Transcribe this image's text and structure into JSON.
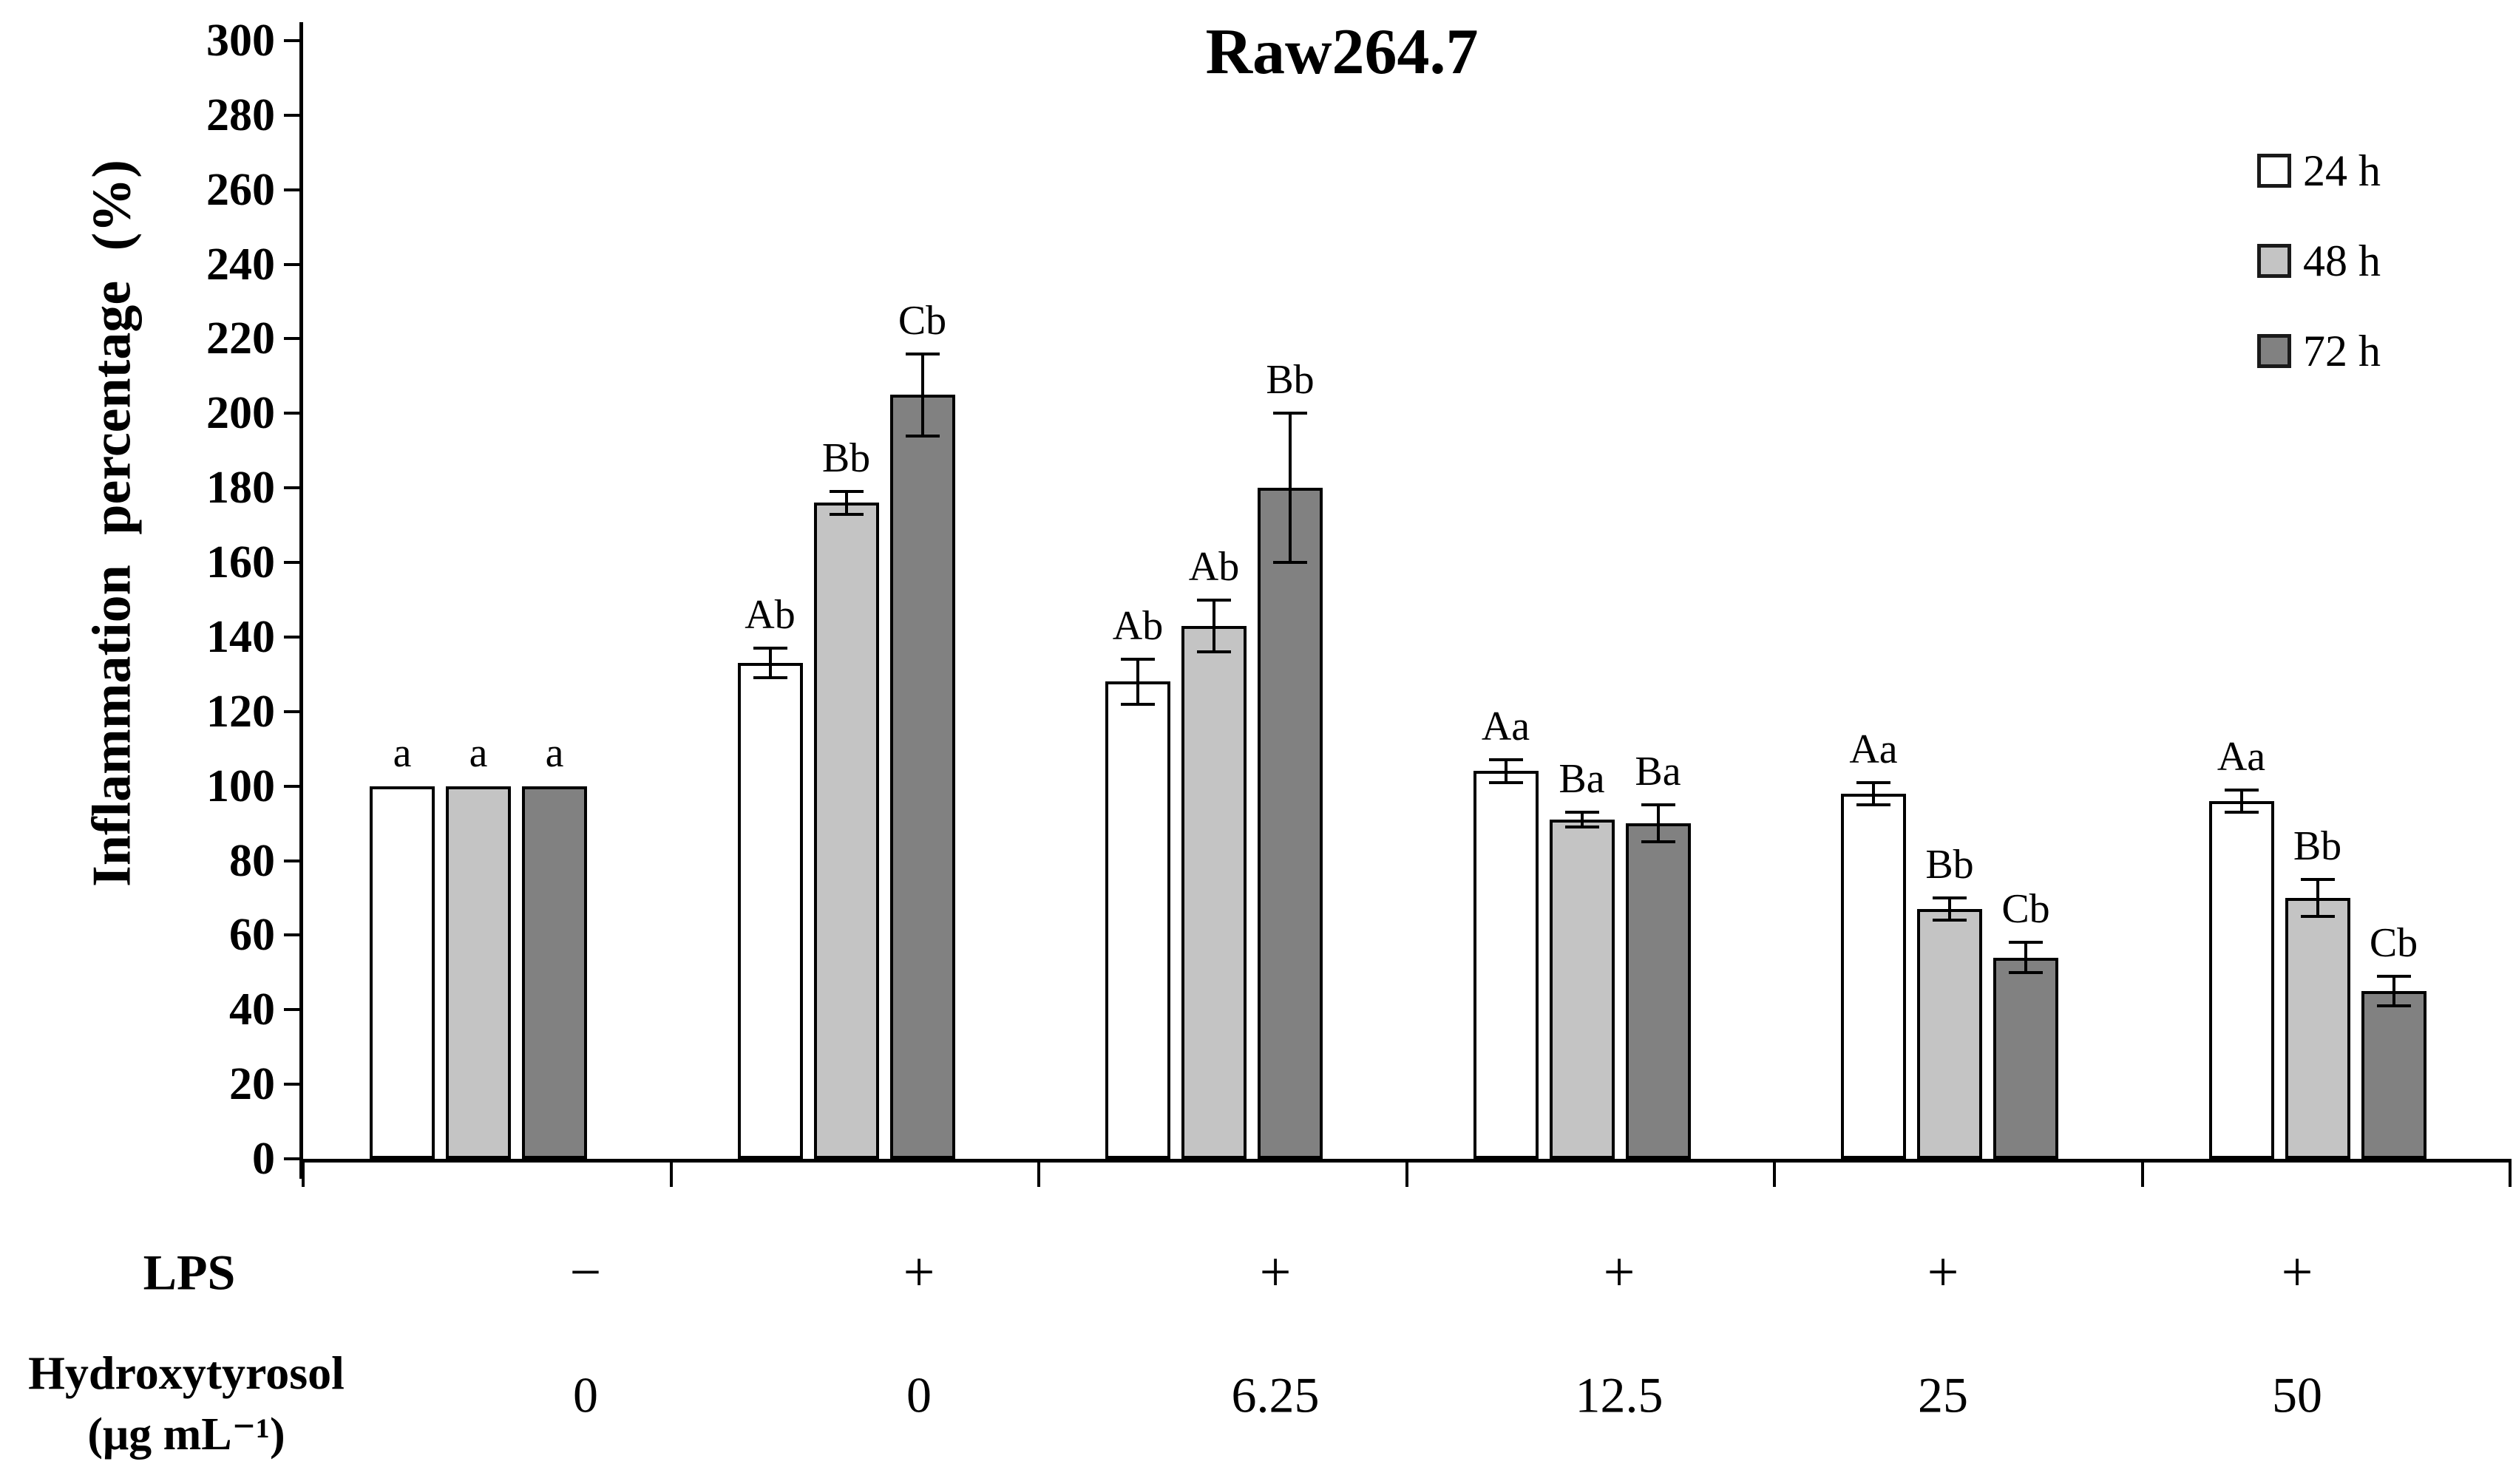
{
  "title": "Raw264.7",
  "y_axis": {
    "label": "Inflammation percentage (%)",
    "min": 0,
    "max": 300,
    "step": 20
  },
  "legend": [
    {
      "label": "24 h",
      "color": "#ffffff"
    },
    {
      "label": "48 h",
      "color": "#c4c4c4"
    },
    {
      "label": "72 h",
      "color": "#818181"
    }
  ],
  "row_labels": {
    "lps": "LPS",
    "concentration": "Hydroxytyrosol",
    "concentration_unit": "(μg mL⁻¹)"
  },
  "colors": {
    "bar_24h": "#ffffff",
    "bar_48h": "#c4c4c4",
    "bar_72h": "#818181",
    "axis": "#000000"
  },
  "chart_data": {
    "type": "bar",
    "title": "Raw264.7",
    "ylabel": "Inflammation percentage (%)",
    "ylim": [
      0,
      300
    ],
    "ytick_step": 20,
    "grid": false,
    "legend_position": "top-right",
    "series_names": [
      "24 h",
      "48 h",
      "72 h"
    ],
    "groups": [
      {
        "lps": "−",
        "concentration": "0",
        "bars": [
          {
            "series": "24 h",
            "value": 100,
            "error": 0,
            "label": "a"
          },
          {
            "series": "48 h",
            "value": 100,
            "error": 0,
            "label": "a"
          },
          {
            "series": "72 h",
            "value": 100,
            "error": 0,
            "label": "a"
          }
        ]
      },
      {
        "lps": "+",
        "concentration": "0",
        "bars": [
          {
            "series": "24 h",
            "value": 133,
            "error": 4,
            "label": "Ab"
          },
          {
            "series": "48 h",
            "value": 176,
            "error": 3,
            "label": "Bb"
          },
          {
            "series": "72 h",
            "value": 205,
            "error": 11,
            "label": "Cb"
          }
        ]
      },
      {
        "lps": "+",
        "concentration": "6.25",
        "bars": [
          {
            "series": "24 h",
            "value": 128,
            "error": 6,
            "label": "Ab"
          },
          {
            "series": "48 h",
            "value": 143,
            "error": 7,
            "label": "Ab"
          },
          {
            "series": "72 h",
            "value": 180,
            "error": 20,
            "label": "Bb"
          }
        ]
      },
      {
        "lps": "+",
        "concentration": "12.5",
        "bars": [
          {
            "series": "24 h",
            "value": 104,
            "error": 3,
            "label": "Aa"
          },
          {
            "series": "48 h",
            "value": 91,
            "error": 2,
            "label": "Ba"
          },
          {
            "series": "72 h",
            "value": 90,
            "error": 5,
            "label": "Ba"
          }
        ]
      },
      {
        "lps": "+",
        "concentration": "25",
        "bars": [
          {
            "series": "24 h",
            "value": 98,
            "error": 3,
            "label": "Aa"
          },
          {
            "series": "48 h",
            "value": 67,
            "error": 3,
            "label": "Bb"
          },
          {
            "series": "72 h",
            "value": 54,
            "error": 4,
            "label": "Cb"
          }
        ]
      },
      {
        "lps": "+",
        "concentration": "50",
        "bars": [
          {
            "series": "24 h",
            "value": 96,
            "error": 3,
            "label": "Aa"
          },
          {
            "series": "48 h",
            "value": 70,
            "error": 5,
            "label": "Bb"
          },
          {
            "series": "72 h",
            "value": 45,
            "error": 4,
            "label": "Cb"
          }
        ]
      }
    ]
  }
}
